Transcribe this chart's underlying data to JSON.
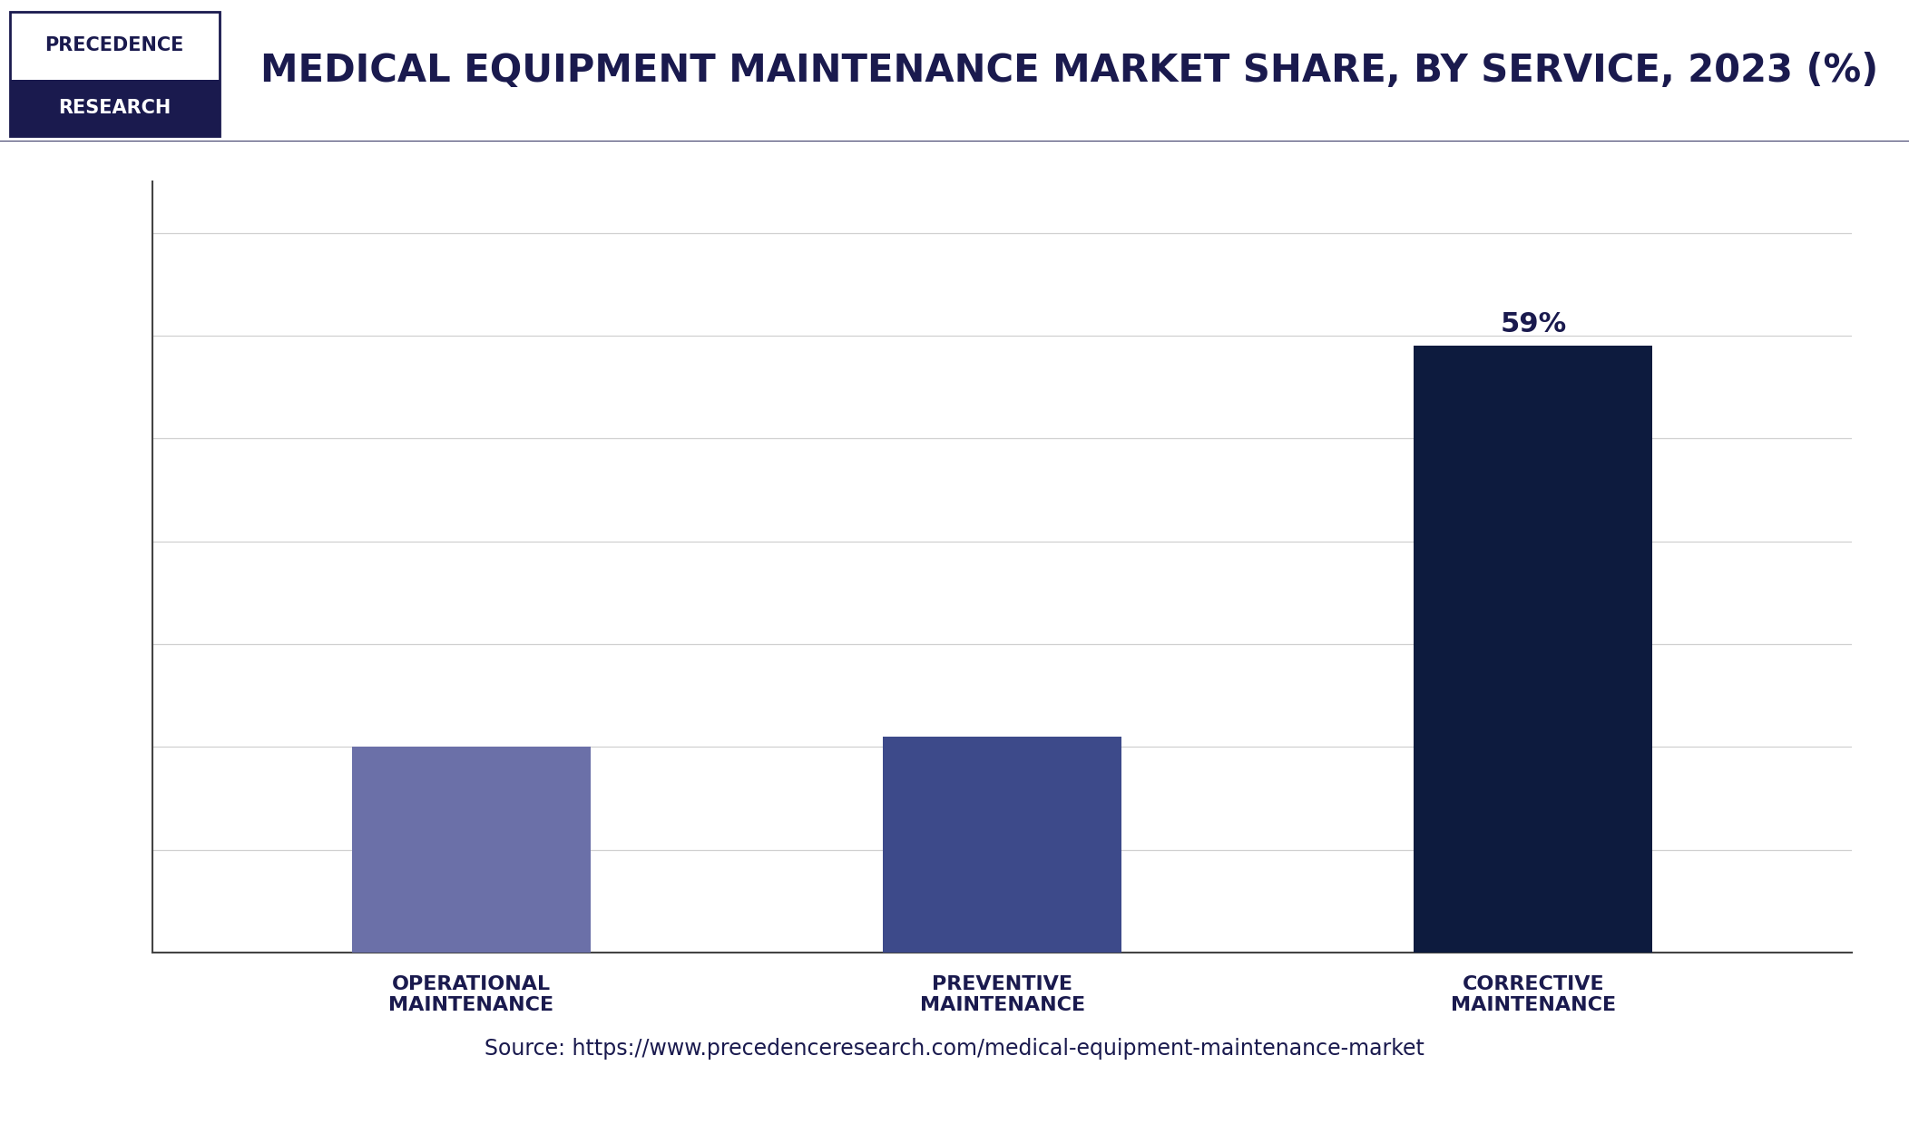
{
  "title": "MEDICAL EQUIPMENT MAINTENANCE MARKET SHARE, BY SERVICE, 2023 (%)",
  "categories": [
    "OPERATIONAL\nMAINTENANCE",
    "PREVENTIVE\nMAINTENANCE",
    "CORRECTIVE\nMAINTENANCE"
  ],
  "values": [
    20,
    21,
    59
  ],
  "bar_colors": [
    "#6B70A8",
    "#3D4A8A",
    "#0D1B3E"
  ],
  "bar_labels": [
    "",
    "",
    "59%"
  ],
  "ylim": [
    0,
    75
  ],
  "yticks": [
    0,
    10,
    20,
    30,
    40,
    50,
    60,
    70
  ],
  "title_color": "#1a1a4e",
  "title_fontsize": 30,
  "tick_label_color": "#1a1a4e",
  "bar_label_color": "#1a1a4e",
  "bar_label_fontsize": 22,
  "source_text": "Source: https://www.precedenceresearch.com/medical-equipment-maintenance-market",
  "source_fontsize": 17,
  "source_color": "#1a1a4e",
  "background_color": "#ffffff",
  "plot_background_color": "#ffffff",
  "grid_color": "#d0d0d0",
  "axis_line_color": "#444444",
  "logo_text_top": "PRECEDENCE",
  "logo_text_bottom": "RESEARCH",
  "logo_bg_top": "#ffffff",
  "logo_bg_bottom": "#1a1a4e",
  "logo_text_top_color": "#1a1a4e",
  "logo_text_bottom_color": "#ffffff",
  "logo_border_color": "#1a1a4e",
  "header_bg_color": "#f7f7f7",
  "header_border_color": "#1a1a4e",
  "bottom_bar_color": "#1a1a4e",
  "bar_width": 0.45
}
